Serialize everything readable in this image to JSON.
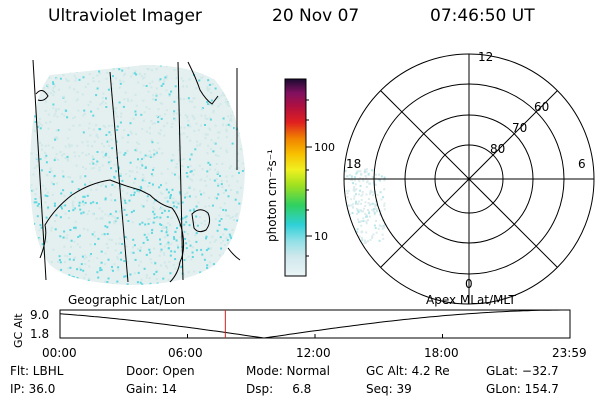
{
  "header": {
    "instrument": "Ultraviolet Imager",
    "date": "20 Nov 07",
    "time": "07:46:50 UT"
  },
  "colorbar": {
    "unit_label": "photon cm⁻²s⁻¹",
    "ticks": [
      "100",
      "10"
    ]
  },
  "polar_plot": {
    "mlt_labels": {
      "top": "12",
      "left": "18",
      "right": "6",
      "bottom": "0"
    },
    "lat_labels": [
      "60",
      "70",
      "80"
    ]
  },
  "panel_titles": {
    "left": "Geographic Lat/Lon",
    "right": "Apex MLat/MLT"
  },
  "timeline": {
    "ylabel": "GC Alt",
    "y_ticks": [
      "9.0",
      "1.8"
    ],
    "x_ticks": [
      "00:00",
      "06:00",
      "12:00",
      "18:00",
      "23:59"
    ],
    "x_hours": [
      0,
      6,
      12,
      18,
      24
    ],
    "altitude_range": [
      1.8,
      9.0
    ],
    "current_time_hours": 7.78,
    "marker_color": "#cc2222"
  },
  "status": {
    "row1": [
      "Flt: LBHL",
      "Door: Open",
      "Mode: Normal",
      "GC Alt: 4.2 Re",
      "GLat: −32.7"
    ],
    "row2": [
      "IP: 36.0",
      "Gain: 14",
      "Dsp:     6.8",
      "Seq: 39",
      "GLon: 154.7"
    ]
  },
  "colors": {
    "emission_cyan": "#5fd8e0",
    "emission_light": "#cfe8e8"
  }
}
